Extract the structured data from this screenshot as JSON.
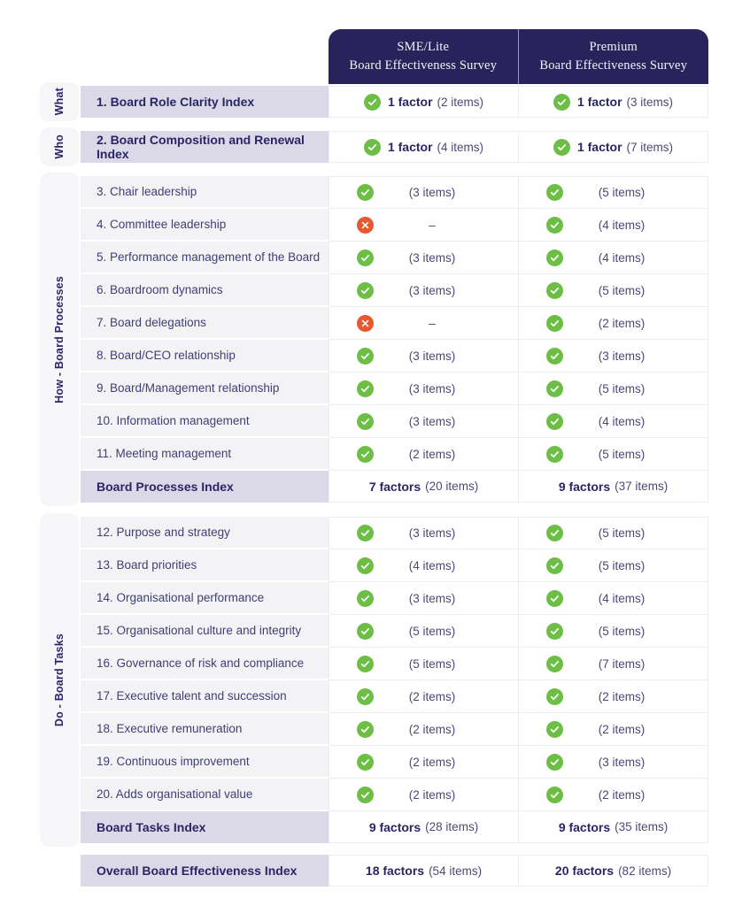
{
  "header": {
    "sme": {
      "line1": "SME/Lite",
      "line2": "Board Effectiveness Survey"
    },
    "premium": {
      "line1": "Premium",
      "line2": "Board Effectiveness Survey"
    }
  },
  "side_groups": {
    "what": "What",
    "who": "Who",
    "how": "How - Board Processes",
    "do": "Do - Board Tasks"
  },
  "colors": {
    "header_navy": "#29235C",
    "check_green": "#6CBE45",
    "cross_orange": "#E8572F",
    "index_row_lavender": "#DBD9E8",
    "item_row_gray": "#F3F3F6",
    "text_navy": "#2B2566"
  },
  "icons": {
    "included": "check-icon",
    "excluded": "cross-icon"
  },
  "rows": {
    "r1": {
      "label": "1. Board Role Clarity Index",
      "sme_factor": "1 factor",
      "sme_items": "(2 items)",
      "prem_factor": "1 factor",
      "prem_items": "(3 items)"
    },
    "r2": {
      "label": "2. Board Composition and Renewal Index",
      "sme_factor": "1 factor",
      "sme_items": "(4 items)",
      "prem_factor": "1 factor",
      "prem_items": "(7 items)"
    },
    "r3": {
      "label": "3. Chair leadership",
      "sme_items": "(3 items)",
      "prem_items": "(5 items)"
    },
    "r4": {
      "label": "4. Committee leadership",
      "sme_items": "–",
      "prem_items": "(4 items)"
    },
    "r5": {
      "label": "5. Performance management of the Board",
      "sme_items": "(3 items)",
      "prem_items": "(4 items)"
    },
    "r6": {
      "label": "6. Boardroom dynamics",
      "sme_items": "(3 items)",
      "prem_items": "(5 items)"
    },
    "r7": {
      "label": "7. Board delegations",
      "sme_items": "–",
      "prem_items": "(2 items)"
    },
    "r8": {
      "label": "8. Board/CEO relationship",
      "sme_items": "(3 items)",
      "prem_items": "(3 items)"
    },
    "r9": {
      "label": "9. Board/Management relationship",
      "sme_items": "(3 items)",
      "prem_items": "(5 items)"
    },
    "r10": {
      "label": "10. Information management",
      "sme_items": "(3 items)",
      "prem_items": "(4 items)"
    },
    "r11": {
      "label": "11. Meeting management",
      "sme_items": "(2 items)",
      "prem_items": "(5 items)"
    },
    "bp": {
      "label": "Board Processes Index",
      "sme_factor": "7 factors",
      "sme_items": "(20 items)",
      "prem_factor": "9 factors",
      "prem_items": "(37 items)"
    },
    "r12": {
      "label": "12. Purpose and strategy",
      "sme_items": "(3 items)",
      "prem_items": "(5 items)"
    },
    "r13": {
      "label": "13. Board priorities",
      "sme_items": "(4 items)",
      "prem_items": "(5 items)"
    },
    "r14": {
      "label": "14. Organisational performance",
      "sme_items": "(3 items)",
      "prem_items": "(4 items)"
    },
    "r15": {
      "label": "15. Organisational culture and integrity",
      "sme_items": "(5 items)",
      "prem_items": "(5 items)"
    },
    "r16": {
      "label": "16. Governance of risk and compliance",
      "sme_items": "(5 items)",
      "prem_items": "(7 items)"
    },
    "r17": {
      "label": "17. Executive talent and succession",
      "sme_items": "(2 items)",
      "prem_items": "(2 items)"
    },
    "r18": {
      "label": "18. Executive remuneration",
      "sme_items": "(2 items)",
      "prem_items": "(2 items)"
    },
    "r19": {
      "label": "19. Continuous improvement",
      "sme_items": "(2 items)",
      "prem_items": "(3 items)"
    },
    "r20": {
      "label": "20. Adds organisational value",
      "sme_items": "(2 items)",
      "prem_items": "(2 items)"
    },
    "bt": {
      "label": "Board Tasks Index",
      "sme_factor": "9 factors",
      "sme_items": "(28 items)",
      "prem_factor": "9 factors",
      "prem_items": "(35 items)"
    },
    "overall": {
      "label": "Overall Board Effectiveness Index",
      "sme_factor": "18 factors",
      "sme_items": "(54 items)",
      "prem_factor": "20 factors",
      "prem_items": "(82 items)"
    }
  }
}
